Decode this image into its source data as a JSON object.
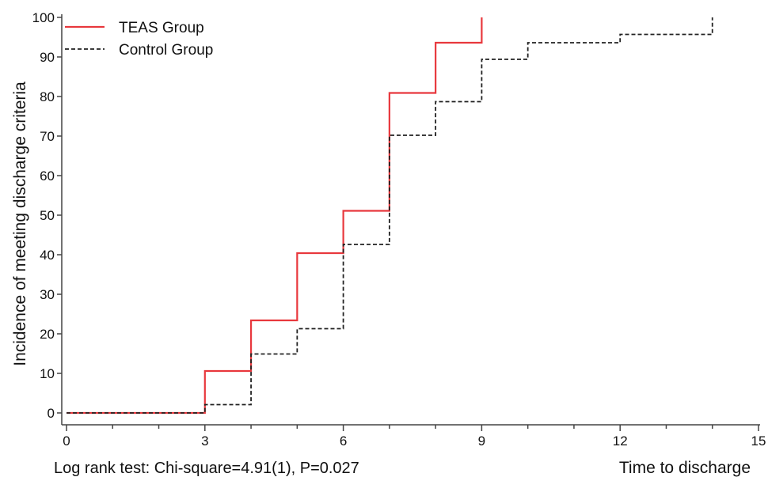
{
  "chart_data": {
    "type": "line",
    "step": true,
    "title": "",
    "xlabel": "Time to discharge",
    "ylabel": "Incidence of meeting discharge criteria",
    "xlim": [
      0,
      15
    ],
    "ylim": [
      0,
      100
    ],
    "xticks": [
      0,
      3,
      6,
      9,
      12,
      15
    ],
    "yticks": [
      0,
      10,
      20,
      30,
      40,
      50,
      60,
      70,
      80,
      90,
      100
    ],
    "grid": false,
    "legend_position": "top-left",
    "annotation": "Log rank test: Chi-square=4.91(1), P=0.027",
    "series": [
      {
        "name": "TEAS Group",
        "color": "#e8383d",
        "style": "solid",
        "x": [
          0,
          3,
          4,
          5,
          6,
          7,
          8,
          9
        ],
        "y": [
          0,
          10.6,
          23.4,
          40.4,
          51.1,
          80.9,
          93.6,
          100
        ]
      },
      {
        "name": "Control Group",
        "color": "#222222",
        "style": "dashed",
        "x": [
          0,
          3,
          4,
          5,
          6,
          7,
          8,
          9,
          10,
          12,
          14
        ],
        "y": [
          0,
          2.1,
          14.9,
          21.3,
          42.6,
          70.2,
          78.7,
          89.4,
          93.6,
          95.7,
          100
        ]
      }
    ]
  }
}
